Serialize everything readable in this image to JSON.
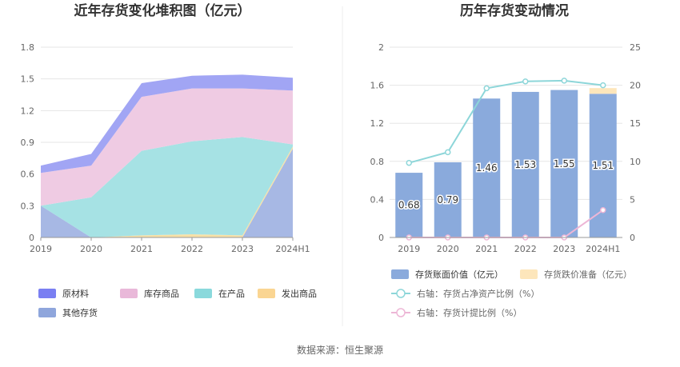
{
  "source_label": "数据来源：恒生聚源",
  "chart_data": [
    {
      "type": "area",
      "stacked": true,
      "title": "近年存货变化堆积图（亿元）",
      "categories": [
        "2019",
        "2020",
        "2021",
        "2022",
        "2023",
        "2024H1"
      ],
      "y_ticks": [
        "0",
        "0.3",
        "0.6",
        "0.9",
        "1.2",
        "1.5",
        "1.8"
      ],
      "ylim": [
        0,
        1.8
      ],
      "grid": true,
      "legend_position": "bottom",
      "series": [
        {
          "name": "其他存货",
          "color": "#a7b8e4",
          "values": [
            0.3,
            0.0,
            0.0,
            0.0,
            0.0,
            0.84
          ]
        },
        {
          "name": "发出商品",
          "color": "#f8e0a6",
          "values": [
            0.0,
            0.0,
            0.02,
            0.03,
            0.02,
            0.02
          ]
        },
        {
          "name": "在产品",
          "color": "#a6e2e4",
          "values": [
            0.0,
            0.38,
            0.8,
            0.88,
            0.93,
            0.02
          ]
        },
        {
          "name": "库存商品",
          "color": "#efcbe3",
          "values": [
            0.31,
            0.3,
            0.51,
            0.5,
            0.46,
            0.51
          ]
        },
        {
          "name": "原材料",
          "color": "#a1a5f4",
          "values": [
            0.07,
            0.11,
            0.13,
            0.12,
            0.13,
            0.12
          ]
        }
      ],
      "legend": [
        {
          "name": "原材料",
          "color": "#7a7ff2"
        },
        {
          "name": "库存商品",
          "color": "#e9b8d9"
        },
        {
          "name": "在产品",
          "color": "#8ad9dc"
        },
        {
          "name": "发出商品",
          "color": "#fad592"
        },
        {
          "name": "其他存货",
          "color": "#8fa6dc"
        }
      ]
    },
    {
      "type": "bar",
      "stacked": true,
      "title": "历年存货变动情况",
      "categories": [
        "2019",
        "2020",
        "2021",
        "2022",
        "2023",
        "2024H1"
      ],
      "left_ticks": [
        "0",
        "0.4",
        "0.8",
        "1.2",
        "1.6",
        "2"
      ],
      "right_ticks": [
        "0",
        "5",
        "10",
        "15",
        "20",
        "25"
      ],
      "ylim": [
        0,
        2
      ],
      "y2lim": [
        0,
        25
      ],
      "grid": true,
      "legend_position": "bottom",
      "bar_series": [
        {
          "name": "存货账面价值（亿元）",
          "color": "#8aaadc",
          "values": [
            0.68,
            0.79,
            1.46,
            1.53,
            1.55,
            1.51
          ],
          "labels": [
            "0.68",
            "0.79",
            "1.46",
            "1.53",
            "1.55",
            "1.51"
          ]
        },
        {
          "name": "存货跌价准备（亿元）",
          "color": "#fde6bb",
          "values": [
            0,
            0,
            0,
            0,
            0,
            0.06
          ]
        }
      ],
      "line_series": [
        {
          "name": "右轴：存货占净资产比例（%）",
          "color": "#8dd6d9",
          "values": [
            9.8,
            11.2,
            19.6,
            20.5,
            20.6,
            20.0
          ]
        },
        {
          "name": "右轴：存货计提比例（%）",
          "color": "#edb6d6",
          "values": [
            0,
            0,
            0,
            0,
            0,
            3.6
          ]
        }
      ]
    }
  ]
}
